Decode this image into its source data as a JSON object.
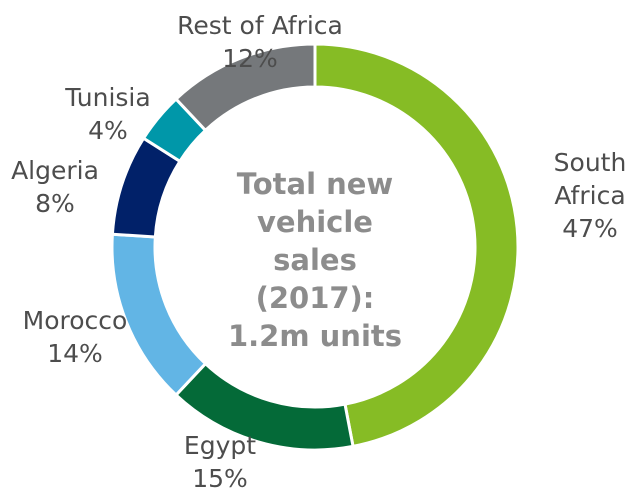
{
  "chart_data": {
    "type": "donut",
    "categories": [
      "South Africa",
      "Egypt",
      "Morocco",
      "Algeria",
      "Tunisia",
      "Rest of Africa"
    ],
    "values": [
      47,
      15,
      14,
      8,
      4,
      12
    ],
    "value_labels": [
      "47%",
      "15%",
      "14%",
      "8%",
      "4%",
      "12%"
    ],
    "colors": [
      "#86bc25",
      "#046a38",
      "#62b5e5",
      "#012169",
      "#0097a9",
      "#75787b"
    ],
    "center_text": [
      "Total new",
      "vehicle",
      "sales",
      "(2017):",
      "1.2m units"
    ]
  }
}
